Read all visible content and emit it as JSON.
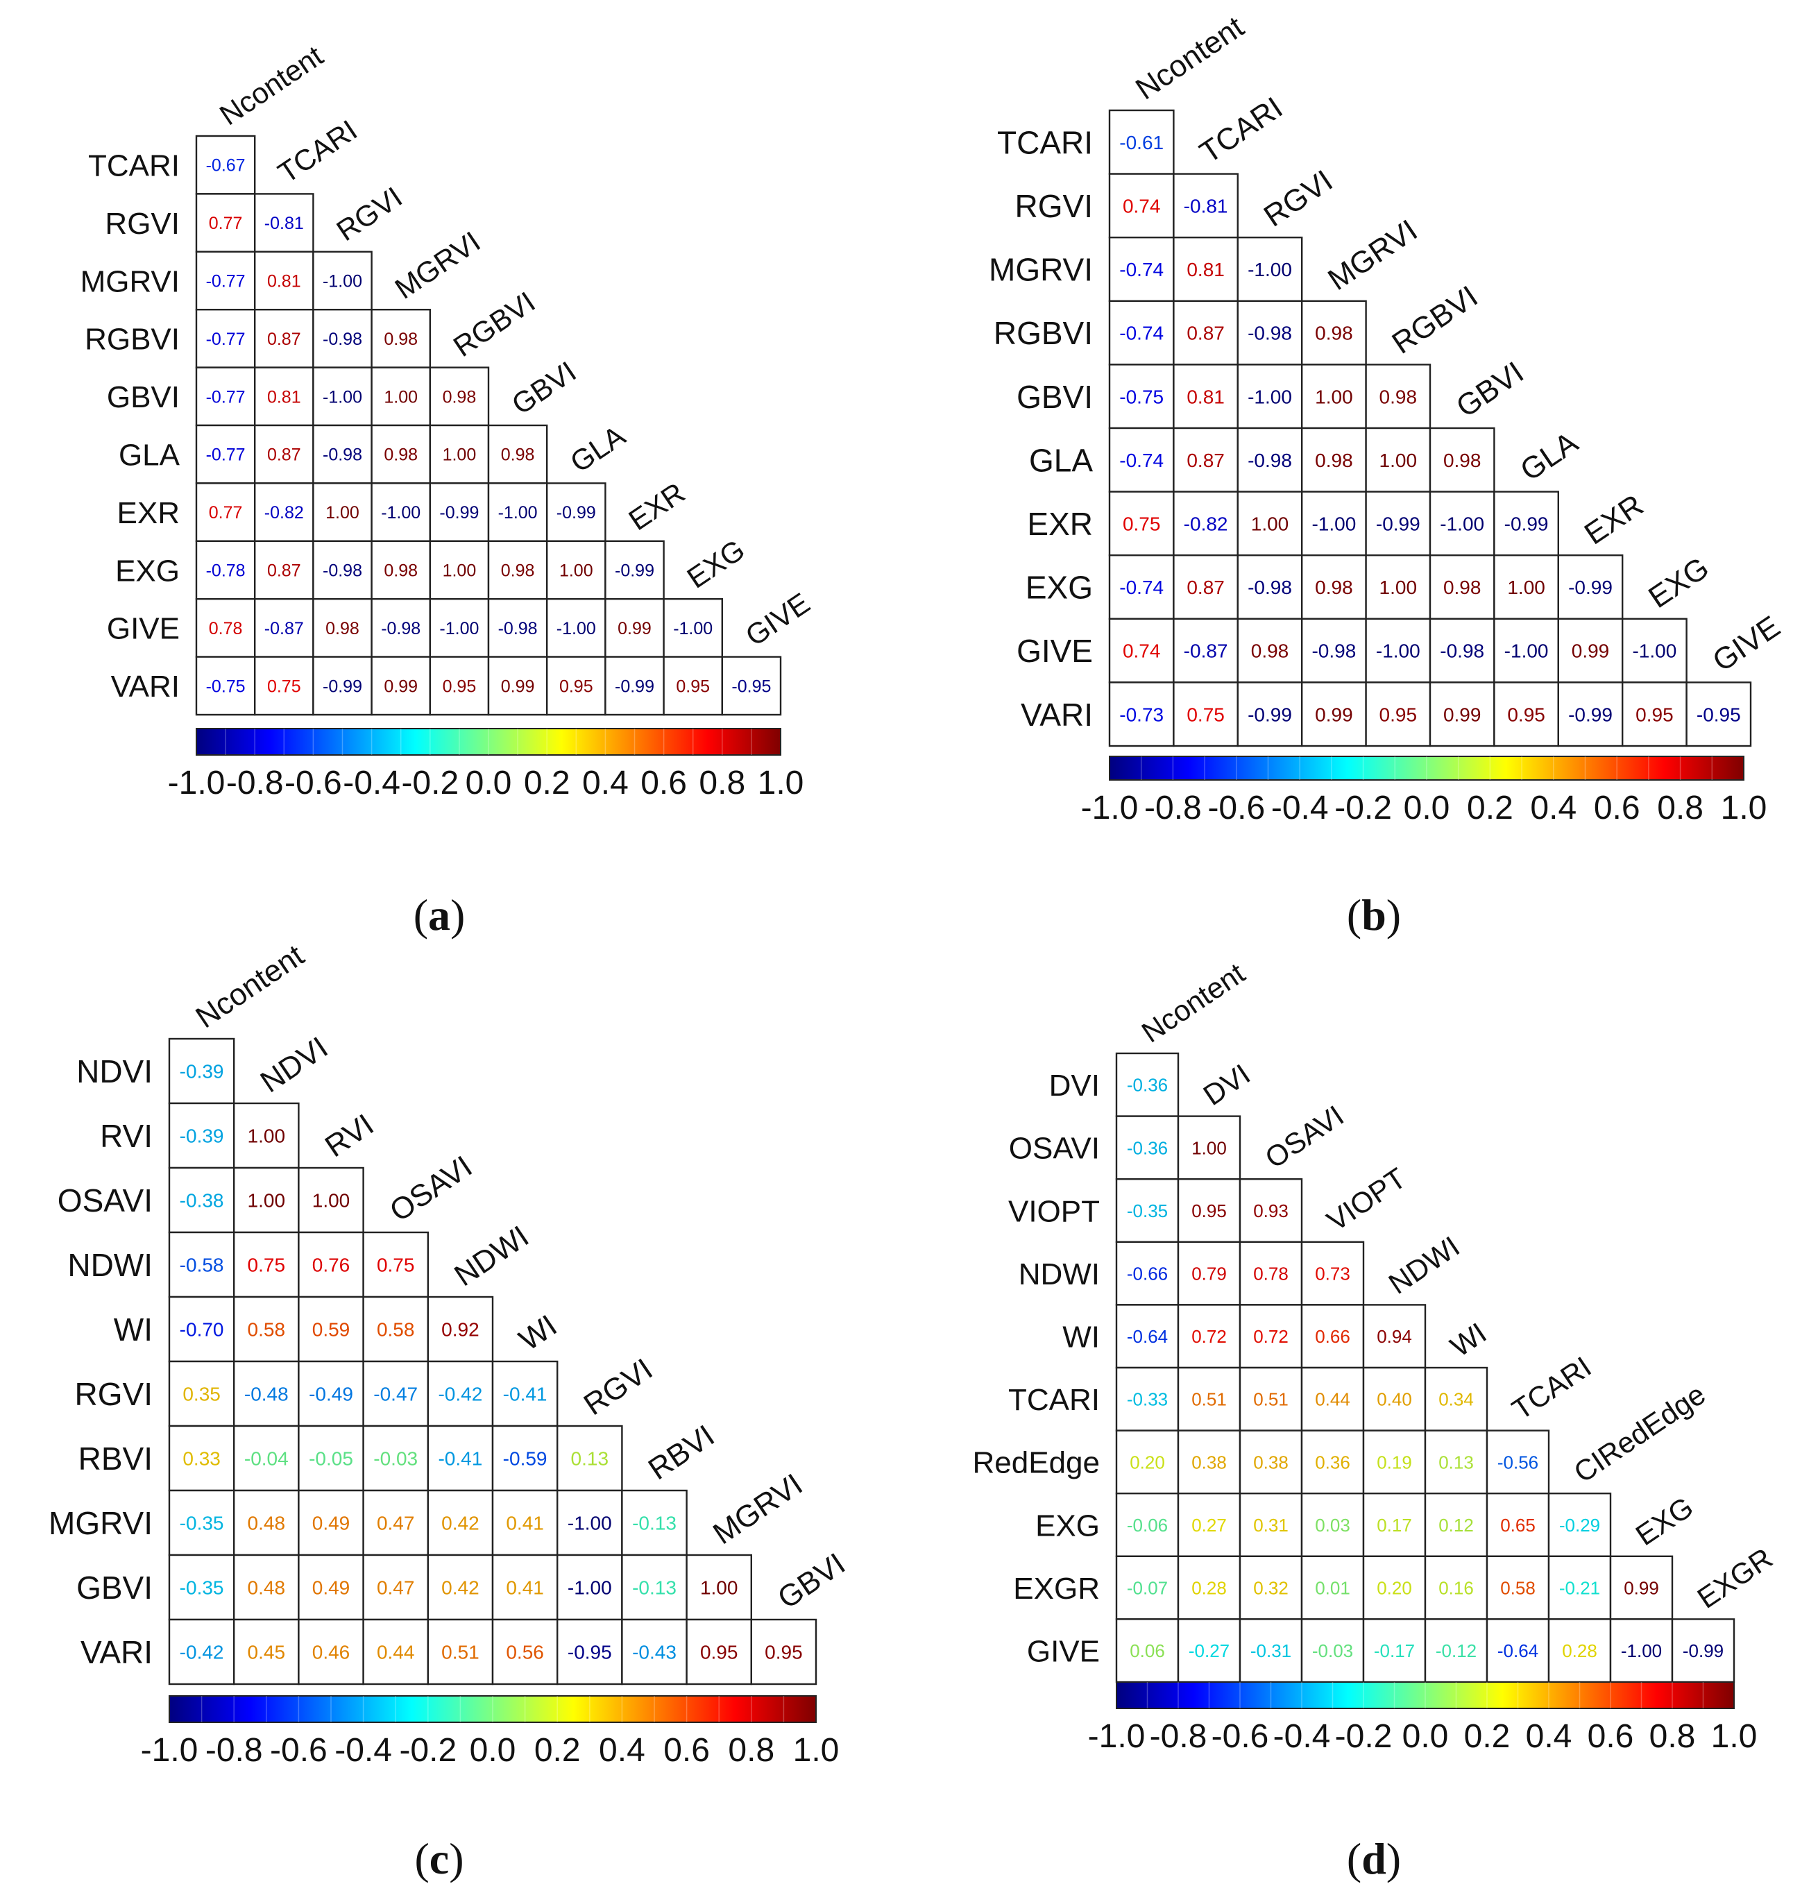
{
  "chart_data": [
    {
      "type": "heatmap",
      "panel_label": "a",
      "row_labels": [
        "TCARI",
        "RGVI",
        "MGRVI",
        "RGBVI",
        "GBVI",
        "GLA",
        "EXR",
        "EXG",
        "GIVE",
        "VARI"
      ],
      "column_labels": [
        "Ncontent",
        "TCARI",
        "RGVI",
        "MGRVI",
        "RGBVI",
        "GBVI",
        "GLA",
        "EXR",
        "EXG",
        "GIVE"
      ],
      "cell_labels": [
        [
          "-0.67"
        ],
        [
          "0.77",
          "-0.81"
        ],
        [
          "-0.77",
          "0.81",
          "-1.00"
        ],
        [
          "-0.77",
          "0.87",
          "-0.98",
          "0.98"
        ],
        [
          "-0.77",
          "0.81",
          "-1.00",
          "1.00",
          "0.98"
        ],
        [
          "-0.77",
          "0.87",
          "-0.98",
          "0.98",
          "1.00",
          "0.98"
        ],
        [
          "0.77",
          "-0.82",
          "1.00",
          "-1.00",
          "-0.99",
          "-1.00",
          "-0.99"
        ],
        [
          "-0.78",
          "0.87",
          "-0.98",
          "0.98",
          "1.00",
          "0.98",
          "1.00",
          "-0.99"
        ],
        [
          "0.78",
          "-0.87",
          "0.98",
          "-0.98",
          "-1.00",
          "-0.98",
          "-1.00",
          "0.99",
          "-1.00"
        ],
        [
          "-0.75",
          "0.75",
          "-0.99",
          "0.99",
          "0.95",
          "0.99",
          "0.95",
          "-0.99",
          "0.95",
          "-0.95"
        ]
      ],
      "colorbar": {
        "range": [
          -1.0,
          1.0
        ],
        "tick_labels": [
          "-1.0",
          "-0.8",
          "-0.6",
          "-0.4",
          "-0.2",
          "0.0",
          "0.2",
          "0.4",
          "0.6",
          "0.8",
          "1.0"
        ]
      }
    },
    {
      "type": "heatmap",
      "panel_label": "b",
      "row_labels": [
        "TCARI",
        "RGVI",
        "MGRVI",
        "RGBVI",
        "GBVI",
        "GLA",
        "EXR",
        "EXG",
        "GIVE",
        "VARI"
      ],
      "column_labels": [
        "Ncontent",
        "TCARI",
        "RGVI",
        "MGRVI",
        "RGBVI",
        "GBVI",
        "GLA",
        "EXR",
        "EXG",
        "GIVE"
      ],
      "cell_labels": [
        [
          "-0.61"
        ],
        [
          "0.74",
          "-0.81"
        ],
        [
          "-0.74",
          "0.81",
          "-1.00"
        ],
        [
          "-0.74",
          "0.87",
          "-0.98",
          "0.98"
        ],
        [
          "-0.75",
          "0.81",
          "-1.00",
          "1.00",
          "0.98"
        ],
        [
          "-0.74",
          "0.87",
          "-0.98",
          "0.98",
          "1.00",
          "0.98"
        ],
        [
          "0.75",
          "-0.82",
          "1.00",
          "-1.00",
          "-0.99",
          "-1.00",
          "-0.99"
        ],
        [
          "-0.74",
          "0.87",
          "-0.98",
          "0.98",
          "1.00",
          "0.98",
          "1.00",
          "-0.99"
        ],
        [
          "0.74",
          "-0.87",
          "0.98",
          "-0.98",
          "-1.00",
          "-0.98",
          "-1.00",
          "0.99",
          "-1.00"
        ],
        [
          "-0.73",
          "0.75",
          "-0.99",
          "0.99",
          "0.95",
          "0.99",
          "0.95",
          "-0.99",
          "0.95",
          "-0.95"
        ]
      ],
      "colorbar": {
        "range": [
          -1.0,
          1.0
        ],
        "tick_labels": [
          "-1.0",
          "-0.8",
          "-0.6",
          "-0.4",
          "-0.2",
          "0.0",
          "0.2",
          "0.4",
          "0.6",
          "0.8",
          "1.0"
        ]
      }
    },
    {
      "type": "heatmap",
      "panel_label": "c",
      "row_labels": [
        "NDVI",
        "RVI",
        "OSAVI",
        "NDWI",
        "WI",
        "RGVI",
        "RBVI",
        "MGRVI",
        "GBVI",
        "VARI"
      ],
      "column_labels": [
        "Ncontent",
        "NDVI",
        "RVI",
        "OSAVI",
        "NDWI",
        "WI",
        "RGVI",
        "RBVI",
        "MGRVI",
        "GBVI"
      ],
      "cell_labels": [
        [
          "-0.39"
        ],
        [
          "-0.39",
          "1.00"
        ],
        [
          "-0.38",
          "1.00",
          "1.00"
        ],
        [
          "-0.58",
          "0.75",
          "0.76",
          "0.75"
        ],
        [
          "-0.70",
          "0.58",
          "0.59",
          "0.58",
          "0.92"
        ],
        [
          "0.35",
          "-0.48",
          "-0.49",
          "-0.47",
          "-0.42",
          "-0.41"
        ],
        [
          "0.33",
          "-0.04",
          "-0.05",
          "-0.03",
          "-0.41",
          "-0.59",
          "0.13"
        ],
        [
          "-0.35",
          "0.48",
          "0.49",
          "0.47",
          "0.42",
          "0.41",
          "-1.00",
          "-0.13"
        ],
        [
          "-0.35",
          "0.48",
          "0.49",
          "0.47",
          "0.42",
          "0.41",
          "-1.00",
          "-0.13",
          "1.00"
        ],
        [
          "-0.42",
          "0.45",
          "0.46",
          "0.44",
          "0.51",
          "0.56",
          "-0.95",
          "-0.43",
          "0.95",
          "0.95"
        ]
      ],
      "colorbar": {
        "range": [
          -1.0,
          1.0
        ],
        "tick_labels": [
          "-1.0",
          "-0.8",
          "-0.6",
          "-0.4",
          "-0.2",
          "0.0",
          "0.2",
          "0.4",
          "0.6",
          "0.8",
          "1.0"
        ]
      }
    },
    {
      "type": "heatmap",
      "panel_label": "d",
      "row_labels": [
        "DVI",
        "OSAVI",
        "VIOPT",
        "NDWI",
        "WI",
        "TCARI",
        "RedEdge",
        "EXG",
        "EXGR",
        "GIVE"
      ],
      "column_labels": [
        "Ncontent",
        "DVI",
        "OSAVI",
        "VIOPT",
        "NDWI",
        "WI",
        "TCARI",
        "CIRedEdge",
        "EXG",
        "EXGR"
      ],
      "cell_labels": [
        [
          "-0.36"
        ],
        [
          "-0.36",
          "1.00"
        ],
        [
          "-0.35",
          "0.95",
          "0.93"
        ],
        [
          "-0.66",
          "0.79",
          "0.78",
          "0.73"
        ],
        [
          "-0.64",
          "0.72",
          "0.72",
          "0.66",
          "0.94"
        ],
        [
          "-0.33",
          "0.51",
          "0.51",
          "0.44",
          "0.40",
          "0.34"
        ],
        [
          "0.20",
          "0.38",
          "0.38",
          "0.36",
          "0.19",
          "0.13",
          "-0.56"
        ],
        [
          "-0.06",
          "0.27",
          "0.31",
          "0.03",
          "0.17",
          "0.12",
          "0.65",
          "-0.29"
        ],
        [
          "-0.07",
          "0.28",
          "0.32",
          "0.01",
          "0.20",
          "0.16",
          "0.58",
          "-0.21",
          "0.99"
        ],
        [
          "0.06",
          "-0.27",
          "-0.31",
          "-0.03",
          "-0.17",
          "-0.12",
          "-0.64",
          "0.28",
          "-1.00",
          "-0.99"
        ]
      ],
      "colorbar": {
        "range": [
          -1.0,
          1.0
        ],
        "tick_labels": [
          "-1.0",
          "-0.8",
          "-0.6",
          "-0.4",
          "-0.2",
          "0.0",
          "0.2",
          "0.4",
          "0.6",
          "0.8",
          "1.0"
        ]
      }
    }
  ]
}
